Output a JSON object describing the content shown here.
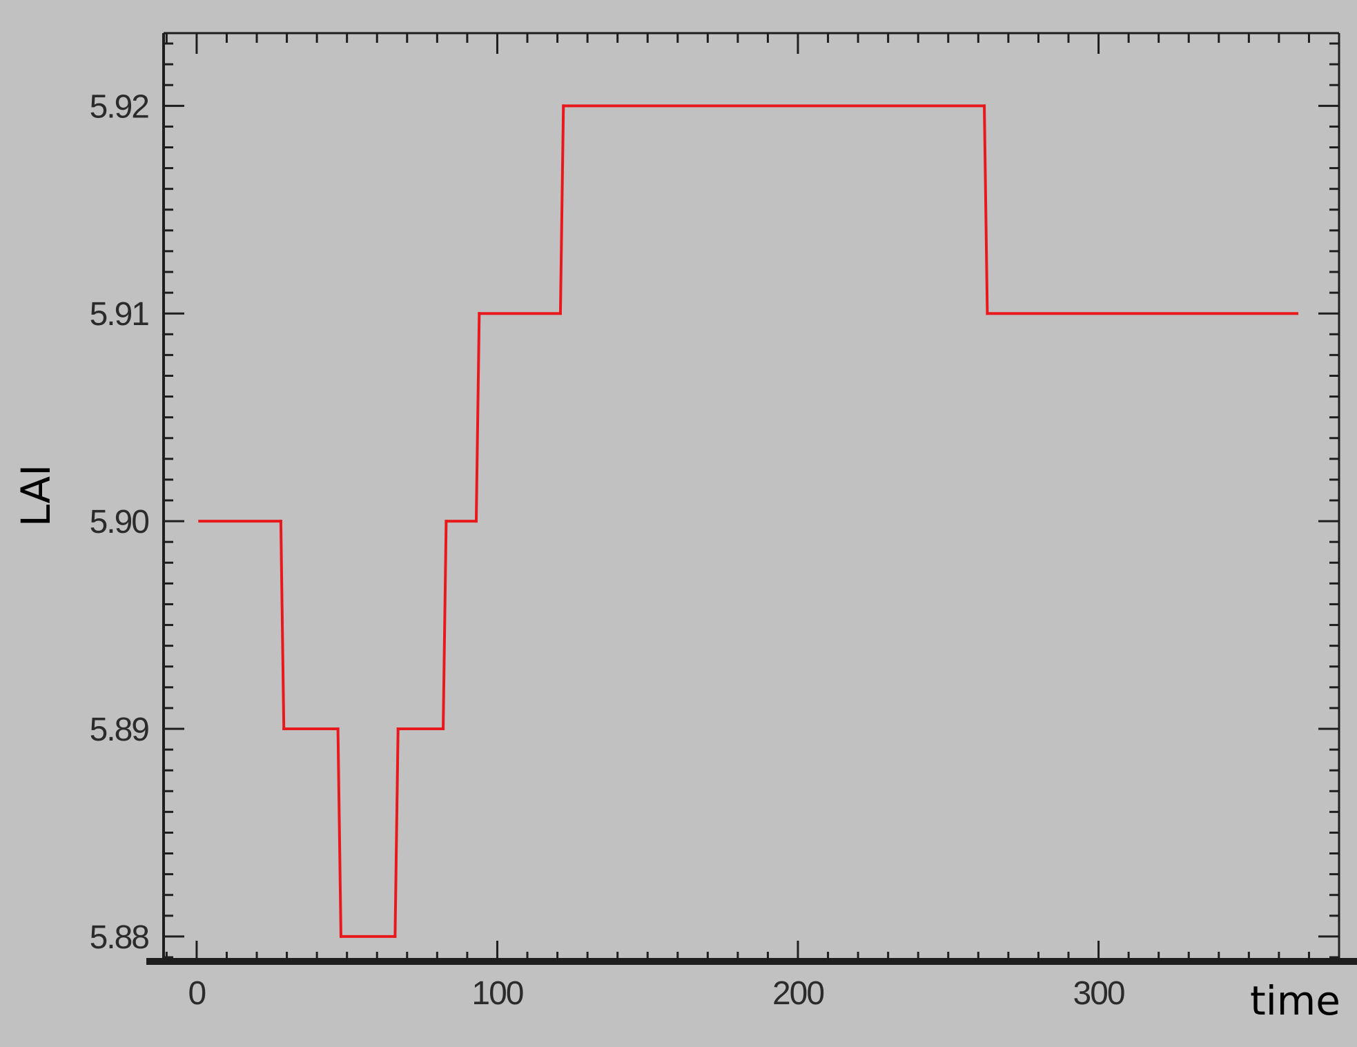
{
  "chart_data": {
    "type": "line",
    "step": true,
    "title": "",
    "xlabel": "time",
    "ylabel": "LAI",
    "xlim": [
      -11,
      380
    ],
    "ylim": [
      5.8788,
      5.9235
    ],
    "x_ticks": [
      0,
      100,
      200,
      300
    ],
    "x_tick_labels": [
      "0",
      "100",
      "200",
      "300"
    ],
    "x_minor_step": 10,
    "y_ticks": [
      5.88,
      5.89,
      5.9,
      5.91,
      5.92
    ],
    "y_tick_labels": [
      "5.88",
      "5.89",
      "5.90",
      "5.91",
      "5.92"
    ],
    "y_minor_step": 0.001,
    "grid": false,
    "line_color": "#e8191c",
    "series": [
      {
        "x": [
          1,
          28,
          29,
          47,
          48,
          66,
          67,
          82,
          83,
          93,
          94,
          121,
          122,
          262,
          263,
          366
        ],
        "y": [
          5.9,
          5.9,
          5.89,
          5.89,
          5.88,
          5.88,
          5.89,
          5.89,
          5.9,
          5.9,
          5.91,
          5.91,
          5.92,
          5.92,
          5.91,
          5.91
        ]
      }
    ]
  }
}
